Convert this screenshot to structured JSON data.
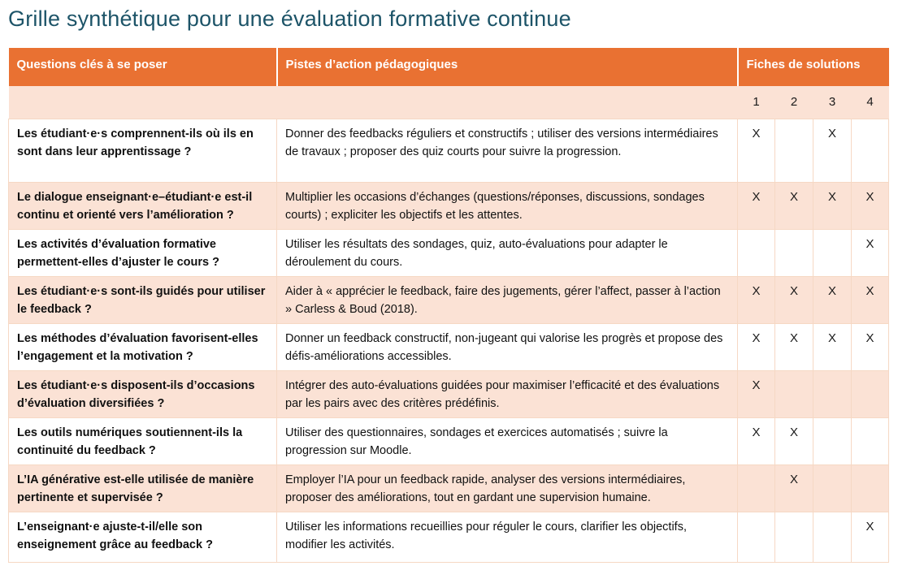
{
  "title": "Grille synthétique pour une évaluation formative continue",
  "colors": {
    "header-bg": "#E97132",
    "header-text": "#FFFFFF",
    "stripe-bg": "#FBE2D5",
    "grid-line": "#F6D8C4",
    "title-color": "#1D5468"
  },
  "table": {
    "headers": [
      "Questions clés à se poser",
      "Pistes d’action pédagogiques",
      "Fiches de solutions"
    ],
    "solution_columns": [
      "1",
      "2",
      "3",
      "4"
    ],
    "rows": [
      {
        "question": "Les étudiant·e·s comprennent-ils où ils en sont dans leur apprentissage ?",
        "action": "Donner des feedbacks réguliers et constructifs ; utiliser des versions intermédiaires de travaux ; proposer des quiz courts pour suivre la progression.",
        "marks": [
          "X",
          "",
          "X",
          ""
        ]
      },
      {
        "question": "Le dialogue enseignant·e–étudiant·e est-il continu et orienté vers l’amélioration ?",
        "action": "Multiplier les occasions d’échanges (questions/réponses, discussions, sondages courts) ; expliciter les objectifs et les attentes.",
        "marks": [
          "X",
          "X",
          "X",
          "X"
        ]
      },
      {
        "question": "Les activités d’évaluation formative permettent-elles d’ajuster le cours ?",
        "action": "Utiliser les résultats des sondages, quiz, auto-évaluations pour adapter le déroulement du cours.",
        "marks": [
          "",
          "",
          "",
          "X"
        ]
      },
      {
        "question": "Les étudiant·e·s sont-ils guidés pour utiliser le feedback ?",
        "action": "Aider à « apprécier le feedback, faire des jugements, gérer l’affect, passer à l’action » Carless & Boud (2018).",
        "marks": [
          "X",
          "X",
          "X",
          "X"
        ]
      },
      {
        "question": "Les méthodes d’évaluation favorisent-elles l’engagement et la motivation ?",
        "action": "Donner un feedback constructif, non-jugeant qui valorise les progrès et propose des défis-améliorations accessibles.",
        "marks": [
          "X",
          "X",
          "X",
          "X"
        ]
      },
      {
        "question": "Les étudiant·e·s disposent-ils d’occasions d’évaluation diversifiées ?",
        "action": "Intégrer des auto-évaluations guidées pour maximiser l’efficacité et des évaluations par les pairs avec des critères prédéfinis.",
        "marks": [
          "X",
          "",
          "",
          ""
        ]
      },
      {
        "question": "Les outils numériques soutiennent-ils la continuité du feedback ?",
        "action": "Utiliser des questionnaires, sondages et exercices automatisés ; suivre la progression sur Moodle.",
        "marks": [
          "X",
          "X",
          "",
          ""
        ]
      },
      {
        "question": "L’IA générative est-elle utilisée de manière pertinente et supervisée ?",
        "action": "Employer l’IA pour un feedback rapide, analyser des versions intermédiaires, proposer des améliorations, tout en gardant une supervision humaine.",
        "marks": [
          "",
          "X",
          "",
          ""
        ]
      },
      {
        "question": "L’enseignant·e ajuste-t-il/elle son enseignement grâce au feedback ?",
        "action": "Utiliser les informations recueillies pour réguler le cours, clarifier les objectifs, modifier les activités.",
        "marks": [
          "",
          "",
          "",
          "X"
        ]
      }
    ]
  }
}
